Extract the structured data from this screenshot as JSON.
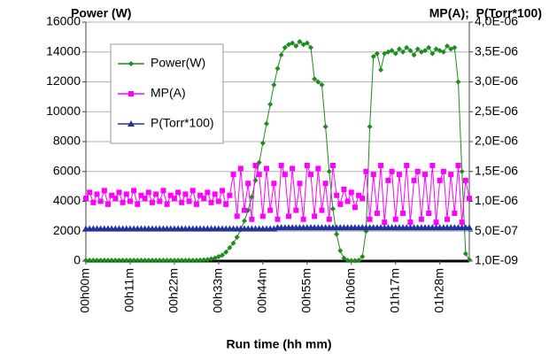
{
  "chart_data": {
    "type": "line",
    "title": "Power (W)",
    "y2_title": "MP(A);  P(Torr*100)",
    "x_label": "Run time (hh mm)",
    "categories": [
      "00h00m",
      null,
      null,
      null,
      null,
      null,
      null,
      null,
      null,
      null,
      null,
      null,
      "00h11m",
      null,
      null,
      null,
      null,
      null,
      null,
      null,
      null,
      null,
      null,
      null,
      "00h22m",
      null,
      null,
      null,
      null,
      null,
      null,
      null,
      null,
      null,
      null,
      null,
      "00h33m",
      null,
      null,
      null,
      null,
      null,
      null,
      null,
      null,
      null,
      null,
      null,
      "00h44m",
      null,
      null,
      null,
      null,
      null,
      null,
      null,
      null,
      null,
      null,
      null,
      "00h55m",
      null,
      null,
      null,
      null,
      null,
      null,
      null,
      null,
      null,
      null,
      null,
      "01h06m",
      null,
      null,
      null,
      null,
      null,
      null,
      null,
      null,
      null,
      null,
      null,
      "01h17m",
      null,
      null,
      null,
      null,
      null,
      null,
      null,
      null,
      null,
      null,
      null,
      "01h28m",
      null,
      null,
      null,
      null,
      null,
      null,
      null,
      null
    ],
    "ylim": [
      0,
      16000
    ],
    "yticks": [
      0,
      2000,
      4000,
      6000,
      8000,
      10000,
      12000,
      14000,
      16000
    ],
    "y2lim": [
      0,
      4e-06
    ],
    "y2ticks": [
      {
        "value": 1e-09,
        "label": "1,0E-09"
      },
      {
        "value": 5e-07,
        "label": "5,0E-07"
      },
      {
        "value": 1e-06,
        "label": "1,0E-06"
      },
      {
        "value": 1.5e-06,
        "label": "1,5E-06"
      },
      {
        "value": 2e-06,
        "label": "2,0E-06"
      },
      {
        "value": 2.5e-06,
        "label": "2,5E-06"
      },
      {
        "value": 3e-06,
        "label": "3,0E-06"
      },
      {
        "value": 3.5e-06,
        "label": "3,5E-06"
      },
      {
        "value": 4e-06,
        "label": "4,0E-06"
      }
    ],
    "grid": true,
    "series": [
      {
        "name": "Power(W)",
        "color": "#1e8c1e",
        "marker": "diamond",
        "values": [
          50,
          50,
          50,
          50,
          50,
          50,
          50,
          50,
          50,
          50,
          50,
          50,
          50,
          50,
          50,
          50,
          50,
          50,
          50,
          50,
          50,
          50,
          50,
          50,
          50,
          50,
          50,
          50,
          50,
          50,
          50,
          60,
          80,
          100,
          150,
          200,
          300,
          400,
          600,
          900,
          1200,
          1600,
          2100,
          2700,
          3400,
          4300,
          5400,
          6600,
          7900,
          9200,
          10500,
          11800,
          12900,
          13800,
          14300,
          14500,
          14600,
          14400,
          14700,
          14500,
          14600,
          14300,
          12200,
          12000,
          11800,
          9000,
          6000,
          3500,
          1800,
          700,
          200,
          50,
          30,
          30,
          50,
          300,
          2000,
          9000,
          13700,
          13900,
          12800,
          13900,
          14000,
          14100,
          13900,
          14200,
          14000,
          14300,
          14100,
          13800,
          14200,
          14000,
          14100,
          14300,
          13900,
          14200,
          14100,
          14000,
          14400,
          14200,
          14300,
          12000,
          6000,
          500,
          100
        ]
      },
      {
        "name": "MP(A)",
        "color": "#ff00ff",
        "marker": "square",
        "axis": "y2",
        "values": [
          1.05e-06,
          1.15e-06,
          9.8e-07,
          1.12e-06,
          1e-06,
          1.18e-06,
          9.5e-07,
          1.1e-06,
          1.05e-06,
          1.15e-06,
          9.8e-07,
          1.12e-06,
          1e-06,
          1.18e-06,
          9.5e-07,
          1.1e-06,
          1.05e-06,
          1.15e-06,
          9.8e-07,
          1.12e-06,
          1e-06,
          1.18e-06,
          9.5e-07,
          1.1e-06,
          1.05e-06,
          1.15e-06,
          9.8e-07,
          1.12e-06,
          1e-06,
          1.18e-06,
          9.5e-07,
          1.1e-06,
          1.05e-06,
          1.15e-06,
          9.8e-07,
          1.12e-06,
          1e-06,
          1.18e-06,
          9.5e-07,
          1.1e-06,
          1.45e-06,
          7.5e-07,
          1.55e-06,
          8.5e-07,
          1.3e-06,
          7e-07,
          1.6e-06,
          1.45e-06,
          7.5e-07,
          1.55e-06,
          8.5e-07,
          1.3e-06,
          7e-07,
          1.6e-06,
          1.45e-06,
          7.5e-07,
          1.55e-06,
          8.5e-07,
          1.3e-06,
          7e-07,
          1.6e-06,
          1.45e-06,
          7.5e-07,
          1.55e-06,
          8.5e-07,
          1.3e-06,
          7e-07,
          1.6e-06,
          1.1e-06,
          9.5e-07,
          1.2e-06,
          1e-06,
          1.15e-06,
          9e-07,
          1.1e-06,
          1.05e-06,
          1.5e-06,
          7e-07,
          1.45e-06,
          8e-07,
          1.6e-06,
          6.5e-07,
          1.35e-06,
          1.5e-06,
          7e-07,
          1.45e-06,
          8e-07,
          1.6e-06,
          6.5e-07,
          1.35e-06,
          1.5e-06,
          7e-07,
          1.45e-06,
          8e-07,
          1.6e-06,
          6.5e-07,
          1.35e-06,
          1.5e-06,
          7e-07,
          1.45e-06,
          8e-07,
          1.6e-06,
          6.5e-07,
          1.35e-06,
          1.05e-06
        ]
      },
      {
        "name": "P(Torr*100)",
        "color": "#2233a0",
        "marker": "triangle",
        "axis": "y2",
        "values": [
          5.4e-07,
          5.4e-07,
          5.4e-07,
          5.4e-07,
          5.4e-07,
          5.4e-07,
          5.4e-07,
          5.4e-07,
          5.4e-07,
          5.4e-07,
          5.4e-07,
          5.4e-07,
          5.4e-07,
          5.4e-07,
          5.4e-07,
          5.4e-07,
          5.4e-07,
          5.4e-07,
          5.4e-07,
          5.4e-07,
          5.4e-07,
          5.4e-07,
          5.4e-07,
          5.4e-07,
          5.4e-07,
          5.4e-07,
          5.4e-07,
          5.4e-07,
          5.4e-07,
          5.4e-07,
          5.4e-07,
          5.4e-07,
          5.4e-07,
          5.4e-07,
          5.4e-07,
          5.4e-07,
          5.4e-07,
          5.4e-07,
          5.4e-07,
          5.4e-07,
          5.4e-07,
          5.4e-07,
          5.4e-07,
          5.4e-07,
          5.4e-07,
          5.4e-07,
          5.4e-07,
          5.4e-07,
          5.4e-07,
          5.4e-07,
          5.4e-07,
          5.4e-07,
          5.6e-07,
          5.6e-07,
          5.6e-07,
          5.6e-07,
          5.6e-07,
          5.6e-07,
          5.6e-07,
          5.6e-07,
          5.6e-07,
          5.6e-07,
          5.6e-07,
          5.6e-07,
          5.6e-07,
          5.6e-07,
          5.6e-07,
          5.6e-07,
          5.6e-07,
          5.6e-07,
          5.6e-07,
          5.6e-07,
          5.6e-07,
          5.6e-07,
          5.6e-07,
          5.6e-07,
          5.6e-07,
          5.6e-07,
          5.6e-07,
          5.6e-07,
          5.6e-07,
          5.6e-07,
          5.6e-07,
          5.6e-07,
          5.6e-07,
          5.6e-07,
          5.6e-07,
          5.6e-07,
          5.6e-07,
          5.6e-07,
          5.6e-07,
          5.6e-07,
          5.6e-07,
          5.6e-07,
          5.6e-07,
          5.6e-07,
          5.6e-07,
          5.6e-07,
          5.6e-07,
          5.6e-07,
          5.6e-07,
          5.6e-07,
          5.6e-07,
          5.6e-07,
          5.6e-07
        ]
      }
    ]
  }
}
